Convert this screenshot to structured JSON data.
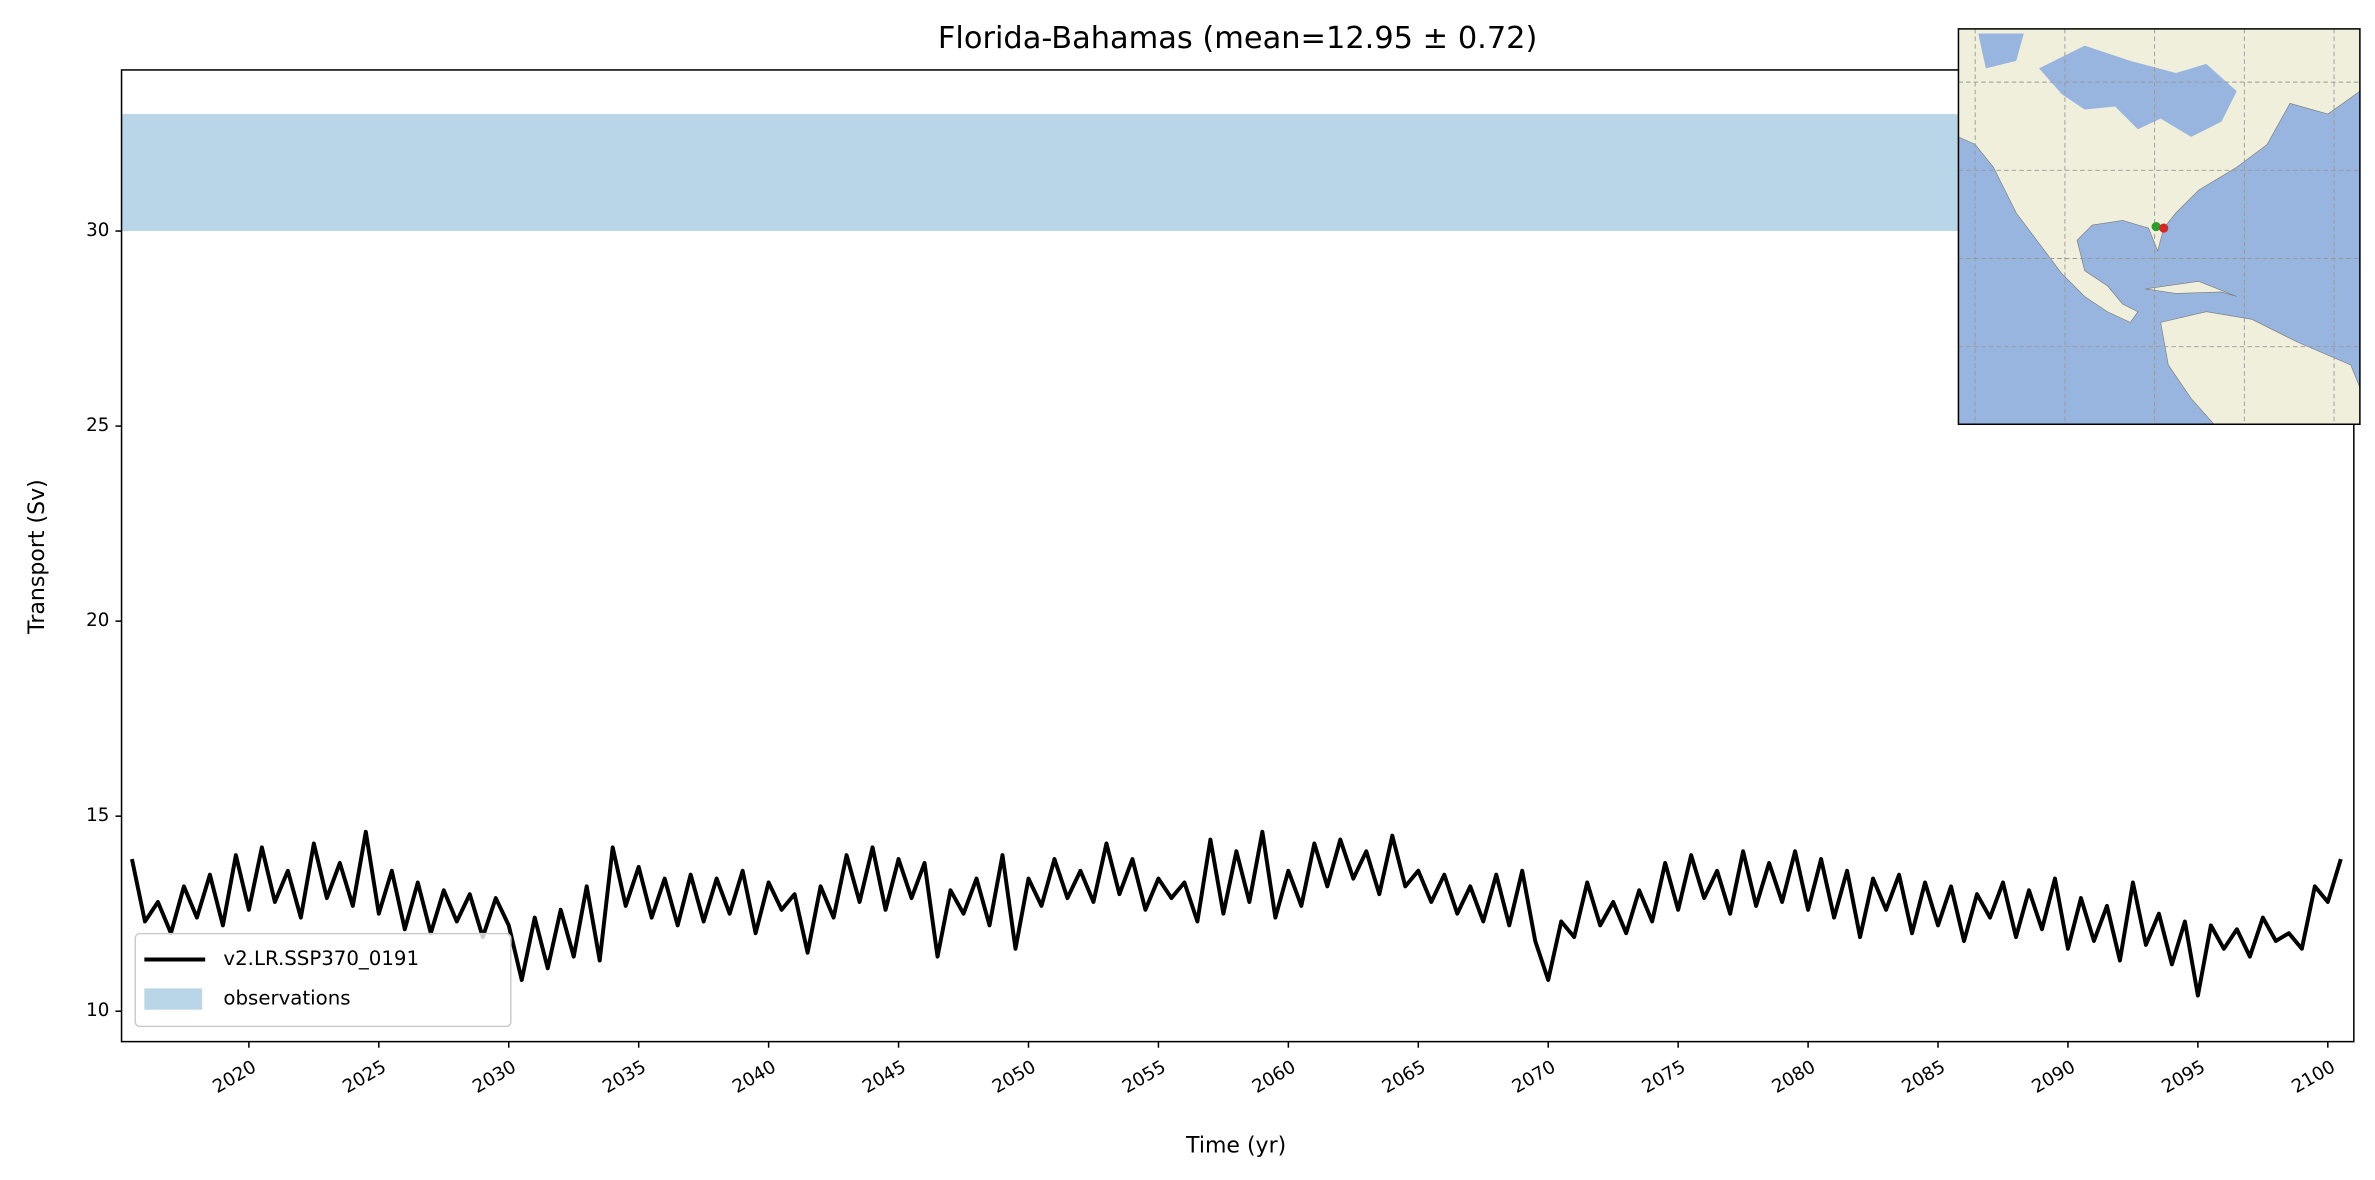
{
  "chart_data": {
    "type": "line",
    "title": "Florida-Bahamas (mean=12.95 ± 0.72)",
    "xlabel": "Time (yr)",
    "ylabel": "Transport (Sv)",
    "xlim": [
      2015.1,
      2101.0
    ],
    "xticks": [
      2020,
      2025,
      2030,
      2035,
      2040,
      2045,
      2050,
      2055,
      2060,
      2065,
      2070,
      2075,
      2080,
      2085,
      2090,
      2095,
      2100
    ],
    "ylim": [
      9.22,
      34.13
    ],
    "yticks": [
      10,
      15,
      20,
      25,
      30
    ],
    "legend": "lower left",
    "band": {
      "name": "observations",
      "color": "#b9d5e8",
      "range": [
        30,
        33
      ]
    },
    "x": [
      2015.5,
      2016,
      2016.5,
      2017,
      2017.5,
      2018,
      2018.5,
      2019,
      2019.5,
      2020,
      2020.5,
      2021,
      2021.5,
      2022,
      2022.5,
      2023,
      2023.5,
      2024,
      2024.5,
      2025,
      2025.5,
      2026,
      2026.5,
      2027,
      2027.5,
      2028,
      2028.5,
      2029,
      2029.5,
      2030,
      2030.5,
      2031,
      2031.5,
      2032,
      2032.5,
      2033,
      2033.5,
      2034,
      2034.5,
      2035,
      2035.5,
      2036,
      2036.5,
      2037,
      2037.5,
      2038,
      2038.5,
      2039,
      2039.5,
      2040,
      2040.5,
      2041,
      2041.5,
      2042,
      2042.5,
      2043,
      2043.5,
      2044,
      2044.5,
      2045,
      2045.5,
      2046,
      2046.5,
      2047,
      2047.5,
      2048,
      2048.5,
      2049,
      2049.5,
      2050,
      2050.5,
      2051,
      2051.5,
      2052,
      2052.5,
      2053,
      2053.5,
      2054,
      2054.5,
      2055,
      2055.5,
      2056,
      2056.5,
      2057,
      2057.5,
      2058,
      2058.5,
      2059,
      2059.5,
      2060,
      2060.5,
      2061,
      2061.5,
      2062,
      2062.5,
      2063,
      2063.5,
      2064,
      2064.5,
      2065,
      2065.5,
      2066,
      2066.5,
      2067,
      2067.5,
      2068,
      2068.5,
      2069,
      2069.5,
      2070,
      2070.5,
      2071,
      2071.5,
      2072,
      2072.5,
      2073,
      2073.5,
      2074,
      2074.5,
      2075,
      2075.5,
      2076,
      2076.5,
      2077,
      2077.5,
      2078,
      2078.5,
      2079,
      2079.5,
      2080,
      2080.5,
      2081,
      2081.5,
      2082,
      2082.5,
      2083,
      2083.5,
      2084,
      2084.5,
      2085,
      2085.5,
      2086,
      2086.5,
      2087,
      2087.5,
      2088,
      2088.5,
      2089,
      2089.5,
      2090,
      2090.5,
      2091,
      2091.5,
      2092,
      2092.5,
      2093,
      2093.5,
      2094,
      2094.5,
      2095,
      2095.5,
      2096,
      2096.5,
      2097,
      2097.5,
      2098,
      2098.5,
      2099,
      2099.5,
      2100,
      2100.5
    ],
    "series": [
      {
        "name": "v2.LR.SSP370_0191",
        "color": "#000000",
        "values": [
          13.9,
          12.3,
          12.8,
          12.0,
          13.2,
          12.4,
          13.5,
          12.2,
          14.0,
          12.6,
          14.2,
          12.8,
          13.6,
          12.4,
          14.3,
          12.9,
          13.8,
          12.7,
          14.6,
          12.5,
          13.6,
          12.1,
          13.3,
          12.0,
          13.1,
          12.3,
          13.0,
          11.9,
          12.9,
          12.2,
          10.8,
          12.4,
          11.1,
          12.6,
          11.4,
          13.2,
          11.3,
          14.2,
          12.7,
          13.7,
          12.4,
          13.4,
          12.2,
          13.5,
          12.3,
          13.4,
          12.5,
          13.6,
          12.0,
          13.3,
          12.6,
          13.0,
          11.5,
          13.2,
          12.4,
          14.0,
          12.8,
          14.2,
          12.6,
          13.9,
          12.9,
          13.8,
          11.4,
          13.1,
          12.5,
          13.4,
          12.2,
          14.0,
          11.6,
          13.4,
          12.7,
          13.9,
          12.9,
          13.6,
          12.8,
          14.3,
          13.0,
          13.9,
          12.6,
          13.4,
          12.9,
          13.3,
          12.3,
          14.4,
          12.5,
          14.1,
          12.8,
          14.6,
          12.4,
          13.6,
          12.7,
          14.3,
          13.2,
          14.4,
          13.4,
          14.1,
          13.0,
          14.5,
          13.2,
          13.6,
          12.8,
          13.5,
          12.5,
          13.2,
          12.3,
          13.5,
          12.2,
          13.6,
          11.8,
          10.8,
          12.3,
          11.9,
          13.3,
          12.2,
          12.8,
          12.0,
          13.1,
          12.3,
          13.8,
          12.6,
          14.0,
          12.9,
          13.6,
          12.5,
          14.1,
          12.7,
          13.8,
          12.8,
          14.1,
          12.6,
          13.9,
          12.4,
          13.6,
          11.9,
          13.4,
          12.6,
          13.5,
          12.0,
          13.3,
          12.2,
          13.2,
          11.8,
          13.0,
          12.4,
          13.3,
          11.9,
          13.1,
          12.1,
          13.4,
          11.6,
          12.9,
          11.8,
          12.7,
          11.3,
          13.3,
          11.7,
          12.5,
          11.2,
          12.3,
          10.4,
          12.2,
          11.6,
          12.1,
          11.4,
          12.4,
          11.8,
          12.0,
          11.6,
          13.2,
          12.8,
          13.9
        ]
      }
    ]
  }
}
